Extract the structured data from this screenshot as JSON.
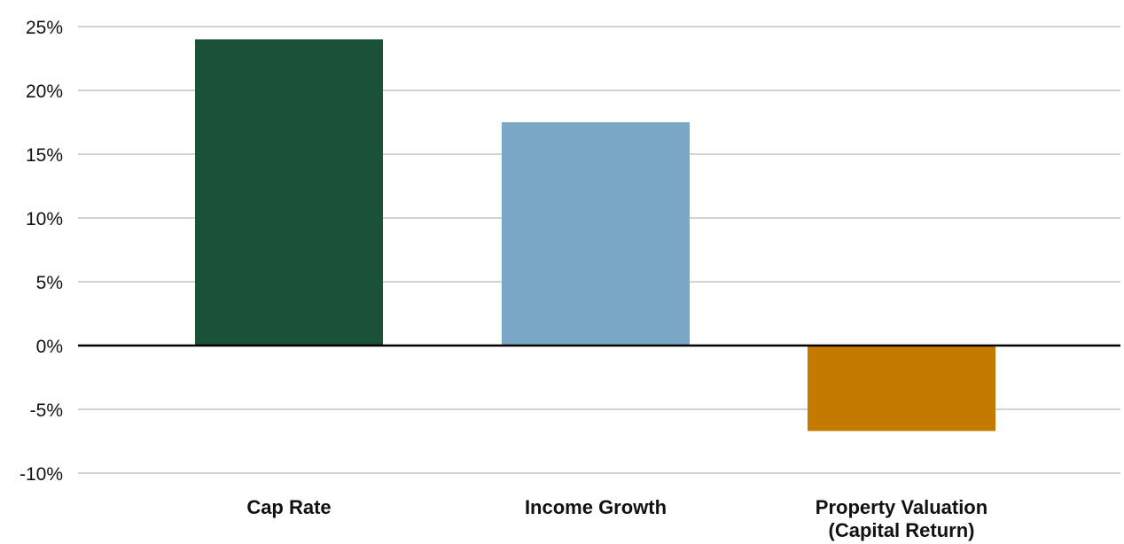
{
  "chart_data": {
    "type": "bar",
    "title": "",
    "xlabel": "",
    "ylabel": "",
    "categories": [
      [
        "Cap Rate"
      ],
      [
        "Income Growth"
      ],
      [
        "Property Valuation",
        "(Capital Return)"
      ]
    ],
    "values": [
      24,
      17.5,
      -6.7
    ],
    "colors": [
      "#1b5138",
      "#7aa7c5",
      "#c47a00"
    ],
    "ylim": [
      -10,
      25
    ],
    "yticks": [
      25,
      20,
      15,
      10,
      5,
      0,
      -5,
      -10
    ],
    "ytick_labels": [
      "25%",
      "20%",
      "15%",
      "10%",
      "5%",
      "0%",
      "-5%",
      "-10%"
    ],
    "grid": true,
    "legend": "none"
  }
}
